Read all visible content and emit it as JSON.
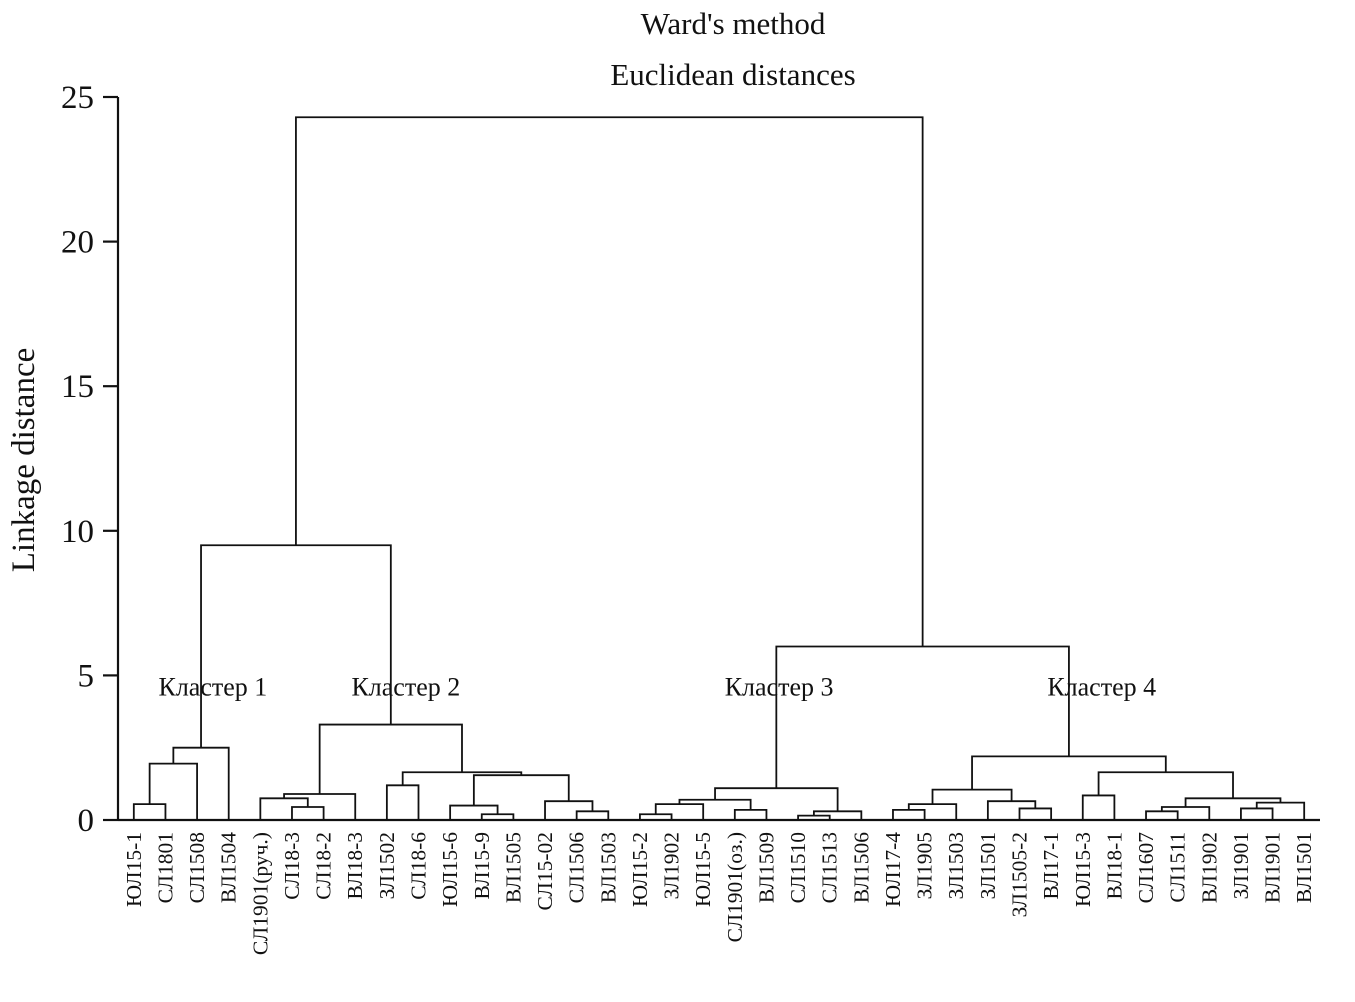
{
  "chart_data": {
    "type": "dendrogram",
    "title": "Ward's method",
    "subtitle": "Euclidean distances",
    "ylabel": "Linkage distance",
    "xlabel": "",
    "y_axis": {
      "ticks": [
        0,
        5,
        10,
        15,
        20,
        25
      ],
      "max": 25
    },
    "line_color": "#111111",
    "cluster_labels": [
      {
        "text": "Кластер 1",
        "leaf_x": 2.5,
        "h": 4.3
      },
      {
        "text": "Кластер 2",
        "leaf_x": 8.6,
        "h": 4.3
      },
      {
        "text": "Кластер 3",
        "leaf_x": 20.4,
        "h": 4.3
      },
      {
        "text": "Кластер 4",
        "leaf_x": 30.6,
        "h": 4.3
      }
    ],
    "leaves_in_order": [
      "ЮЛ15-1",
      "СЛ1801",
      "СЛ1508",
      "ВЛ1504",
      "СЛ1901(руч.)",
      "СЛ18-3",
      "СЛ18-2",
      "ВЛ18-3",
      "ЗЛ1502",
      "СЛ18-6",
      "ЮЛ15-6",
      "ВЛ15-9",
      "ВЛ1505",
      "СЛ15-02",
      "СЛ1506",
      "ВЛ1503",
      "ЮЛ15-2",
      "ЗЛ1902",
      "ЮЛ15-5",
      "СЛ1901(оз.)",
      "ВЛ1509",
      "СЛ1510",
      "СЛ1513",
      "ВЛ1506",
      "ЮЛ17-4",
      "ЗЛ1905",
      "ЗЛ1503",
      "ЗЛ1501",
      "ЗЛ1505-2",
      "ВЛ17-1",
      "ЮЛ15-3",
      "ВЛ18-1",
      "СЛ1607",
      "СЛ1511",
      "ВЛ1902",
      "ЗЛ1901",
      "ВЛ1901",
      "ВЛ1501"
    ],
    "tree": {
      "h": 24.3,
      "c": [
        {
          "h": 9.5,
          "c": [
            {
              "h": 2.5,
              "c": [
                {
                  "h": 1.95,
                  "c": [
                    {
                      "h": 0.55,
                      "c": [
                        "ЮЛ15-1",
                        "СЛ1801"
                      ]
                    },
                    "СЛ1508"
                  ]
                },
                "ВЛ1504"
              ]
            },
            {
              "h": 3.3,
              "c": [
                {
                  "h": 0.9,
                  "c": [
                    {
                      "h": 0.75,
                      "c": [
                        "СЛ1901(руч.)",
                        {
                          "h": 0.45,
                          "c": [
                            "СЛ18-3",
                            "СЛ18-2"
                          ]
                        }
                      ]
                    },
                    "ВЛ18-3"
                  ]
                },
                {
                  "h": 1.65,
                  "c": [
                    {
                      "h": 1.2,
                      "c": [
                        "ЗЛ1502",
                        "СЛ18-6"
                      ]
                    },
                    {
                      "h": 1.55,
                      "c": [
                        {
                          "h": 0.5,
                          "c": [
                            "ЮЛ15-6",
                            {
                              "h": 0.2,
                              "c": [
                                "ВЛ15-9",
                                "ВЛ1505"
                              ]
                            }
                          ]
                        },
                        {
                          "h": 0.65,
                          "c": [
                            "СЛ15-02",
                            {
                              "h": 0.3,
                              "c": [
                                "СЛ1506",
                                "ВЛ1503"
                              ]
                            }
                          ]
                        }
                      ]
                    }
                  ]
                }
              ]
            }
          ]
        },
        {
          "h": 6.0,
          "c": [
            {
              "h": 1.1,
              "c": [
                {
                  "h": 0.7,
                  "c": [
                    {
                      "h": 0.55,
                      "c": [
                        {
                          "h": 0.2,
                          "c": [
                            "ЮЛ15-2",
                            "ЗЛ1902"
                          ]
                        },
                        "ЮЛ15-5"
                      ]
                    },
                    {
                      "h": 0.35,
                      "c": [
                        "СЛ1901(оз.)",
                        "ВЛ1509"
                      ]
                    }
                  ]
                },
                {
                  "h": 0.3,
                  "c": [
                    {
                      "h": 0.15,
                      "c": [
                        "СЛ1510",
                        "СЛ1513"
                      ]
                    },
                    "ВЛ1506"
                  ]
                }
              ]
            },
            {
              "h": 2.2,
              "c": [
                {
                  "h": 1.05,
                  "c": [
                    {
                      "h": 0.55,
                      "c": [
                        {
                          "h": 0.35,
                          "c": [
                            "ЮЛ17-4",
                            "ЗЛ1905"
                          ]
                        },
                        "ЗЛ1503"
                      ]
                    },
                    {
                      "h": 0.65,
                      "c": [
                        "ЗЛ1501",
                        {
                          "h": 0.4,
                          "c": [
                            "ЗЛ1505-2",
                            "ВЛ17-1"
                          ]
                        }
                      ]
                    }
                  ]
                },
                {
                  "h": 1.65,
                  "c": [
                    {
                      "h": 0.85,
                      "c": [
                        "ЮЛ15-3",
                        "ВЛ18-1"
                      ]
                    },
                    {
                      "h": 0.75,
                      "c": [
                        {
                          "h": 0.45,
                          "c": [
                            {
                              "h": 0.3,
                              "c": [
                                "СЛ1607",
                                "СЛ1511"
                              ]
                            },
                            "ВЛ1902"
                          ]
                        },
                        {
                          "h": 0.6,
                          "c": [
                            {
                              "h": 0.4,
                              "c": [
                                "ЗЛ1901",
                                "ВЛ1901"
                              ]
                            },
                            "ВЛ1501"
                          ]
                        }
                      ]
                    }
                  ]
                }
              ]
            }
          ]
        }
      ]
    }
  }
}
